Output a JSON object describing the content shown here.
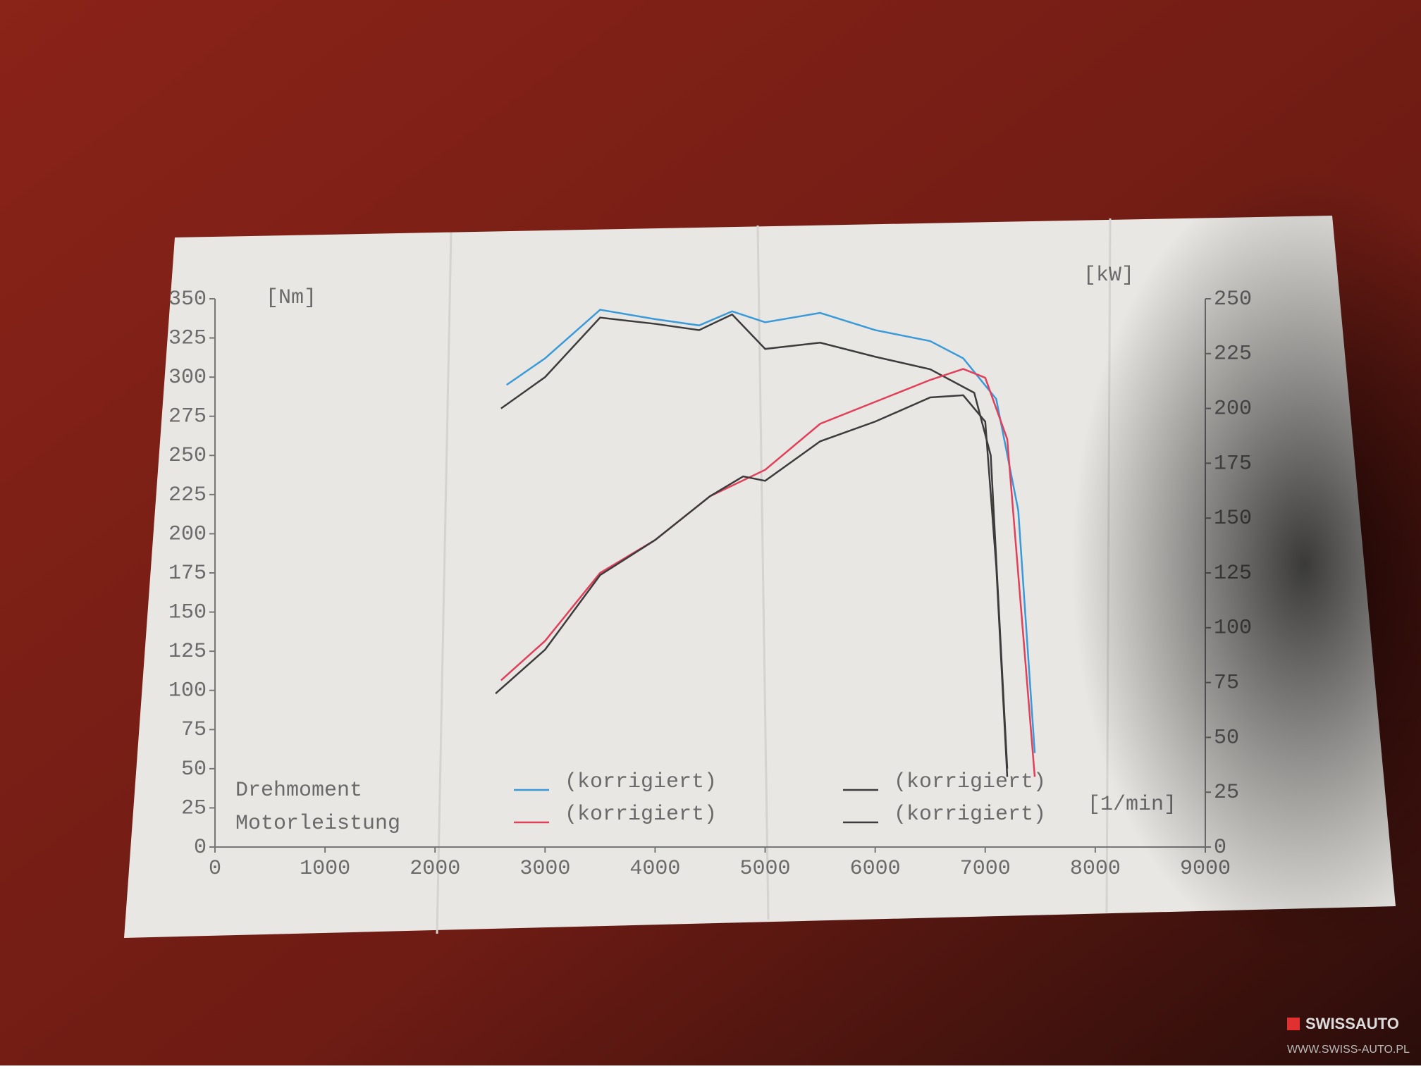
{
  "chart_data": {
    "type": "line",
    "x_label": "[1/min]",
    "y_label": "[Nm]",
    "y2_label": "[kW]",
    "legend_rows": [
      "Drehmoment",
      "Motorleistung"
    ],
    "xlim": [
      0,
      9000
    ],
    "xticks": [
      0,
      1000,
      2000,
      3000,
      4000,
      5000,
      6000,
      7000,
      8000,
      9000
    ],
    "ylim": [
      0,
      350
    ],
    "yticks": [
      0,
      25,
      50,
      75,
      100,
      125,
      150,
      175,
      200,
      225,
      250,
      275,
      300,
      325,
      350
    ],
    "y2lim": [
      0,
      250
    ],
    "y2ticks": [
      0,
      25,
      50,
      75,
      100,
      125,
      150,
      175,
      200,
      225,
      250
    ],
    "series": [
      {
        "name": "(korrigiert)",
        "color": "#3a9ad9",
        "axis": "y",
        "x": [
          2650,
          3000,
          3500,
          4000,
          4400,
          4700,
          5000,
          5500,
          6000,
          6500,
          6800,
          7100,
          7300,
          7450
        ],
        "values": [
          295,
          312,
          343,
          337,
          333,
          342,
          335,
          341,
          330,
          323,
          312,
          286,
          215,
          60
        ]
      },
      {
        "name": "(korrigiert)",
        "color": "#3c3c3c",
        "axis": "y",
        "x": [
          2600,
          3000,
          3500,
          4000,
          4400,
          4700,
          5000,
          5500,
          6000,
          6500,
          6900,
          7050,
          7200
        ],
        "values": [
          280,
          300,
          338,
          334,
          330,
          340,
          318,
          322,
          313,
          305,
          290,
          250,
          50
        ]
      },
      {
        "name": "(korrigiert)",
        "color": "#e0405a",
        "axis": "y2",
        "x": [
          2600,
          3000,
          3500,
          4000,
          4500,
          5000,
          5500,
          6000,
          6500,
          6800,
          7000,
          7200,
          7450
        ],
        "values": [
          76,
          94,
          125,
          140,
          160,
          172,
          193,
          203,
          213,
          218,
          214,
          186,
          32
        ]
      },
      {
        "name": "(korrigiert)",
        "color": "#3c3c3c",
        "axis": "y2",
        "x": [
          2550,
          3000,
          3500,
          4000,
          4500,
          4800,
          5000,
          5500,
          6000,
          6500,
          6800,
          7000,
          7100,
          7200
        ],
        "values": [
          70,
          90,
          124,
          140,
          160,
          169,
          167,
          185,
          194,
          205,
          206,
          194,
          128,
          32
        ]
      }
    ]
  },
  "watermark": {
    "brand": "SWISSAUTO",
    "url": "WWW.SWISS-AUTO.PL"
  }
}
